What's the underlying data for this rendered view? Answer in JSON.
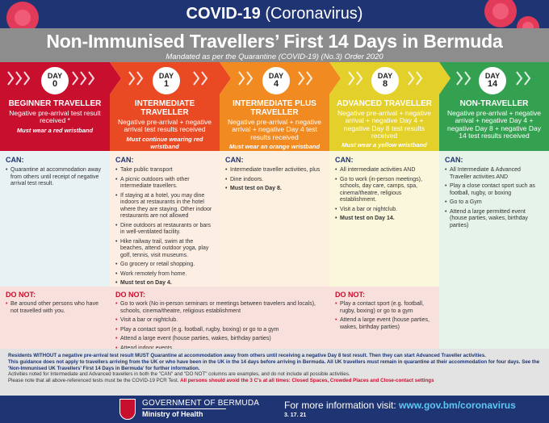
{
  "header": {
    "title_bold": "COVID-19",
    "title_light": "(Coronavirus)",
    "main_title": "Non-Immunised Travellers’ First 14 Days in Bermuda",
    "mandate": "Mandated as per the Quarantine (COVID-19) (No.3) Order 2020"
  },
  "colors": {
    "navy": "#1e3473",
    "red": "#c8102e",
    "orange_red": "#ea4a23",
    "orange": "#f18a21",
    "yellow": "#e4d02a",
    "green": "#33a150",
    "url_blue": "#5ec8f2"
  },
  "days": [
    {
      "label": "DAY",
      "num": "0"
    },
    {
      "label": "DAY",
      "num": "1"
    },
    {
      "label": "DAY",
      "num": "4"
    },
    {
      "label": "DAY",
      "num": "8"
    },
    {
      "label": "DAY",
      "num": "14"
    }
  ],
  "stages": [
    {
      "title": "BEGINNER TRAVELLER",
      "desc": "Negative pre-arrival test result received *",
      "note": "Must wear a red wristband"
    },
    {
      "title": "INTERMEDIATE TRAVELLER",
      "desc": "Negative pre-arrival + negative arrival test results received",
      "note": "Must continue wearing red wristband"
    },
    {
      "title": "INTERMEDIATE PLUS TRAVELLER",
      "desc": "Negative pre-arrival + negative arrival + negative Day 4 test results received",
      "note": "Must wear an orange wristband"
    },
    {
      "title": "ADVANCED TRAVELLER",
      "desc": "Negative pre-arrival + negative arrival + negative Day 4 + negative Day 8 test results received",
      "note": "Must wear a yellow wristband"
    },
    {
      "title": "NON-TRAVELLER",
      "desc": "Negative pre-arrival + negative arrival + negative Day 4 + negative Day 8 + negative Day 14 test results received",
      "note": ""
    }
  ],
  "can_label": "CAN:",
  "donot_label": "DO NOT:",
  "can": [
    [
      "Quarantine at accommodation away from others until receipt of negative arrival test result."
    ],
    [
      "Take public transport",
      "A picnic outdoors with other intermediate travellers.",
      "If staying at a hotel, you may dine indoors at restaurants in the hotel where they are staying. Other indoor restaurants are not allowed",
      "Dine outdoors at restaurants or bars in well-ventilated facility.",
      "Hike railway trail, swim at the beaches, attend outdoor yoga, play golf, tennis, visit museums.",
      "Go grocery or retail shopping.",
      "Work remotely from home.",
      "Must test on Day 4."
    ],
    [
      "Intermediate traveller activities, plus",
      "Dine indoors.",
      "Must test on Day 8."
    ],
    [
      "All intermediate activities AND",
      "Go to work (in-person meetings), schools, day care, camps, spa, cinema/theatre, religious establishment.",
      "Visit a bar or nightclub.",
      "Must test on Day 14."
    ],
    [
      "All Intermediate & Advanced Traveller activities AND",
      "Play a close contact sport such as football, rugby, or boxing",
      "Go to a Gym",
      "Attend a large permitted event (house parties, wakes, birthday parties)"
    ]
  ],
  "donot": [
    [
      "Be around other persons who have not travelled with you."
    ],
    [
      "Go to work (No in-person seminars or meetings between travelers and locals), schools, cinema/theatre, religious establishment",
      "Visit a bar or nightclub.",
      "Play a contact sport (e.g. football, rugby, boxing) or go to a gym",
      "Attend a large event (house parties, wakes, birthday parties)",
      "Attend indoor events."
    ],
    [
      "Play a contact sport (e.g. football, rugby, boxing) or go to a gym",
      "Attend a large event (house parties, wakes, birthday parties)"
    ]
  ],
  "footnote": {
    "line1": "Residents WITHOUT a negative pre-arrival test result MUST Quarantine at accommodation away from others until receiving a negative Day 8 test result. Then they can start Advanced Traveller activities.",
    "line2": "This guidance does not apply to travellers arriving from the UK or who have been in the UK in the 14 days before arriving in Bermuda. All UK travellers must remain in quarantine at their accommodation for four days. See the 'Non-Immunised UK Travellers' First 14 Days in Bermuda' for further information.",
    "line3": "Activities noted for Intermediate and Advanced travellers in both the \"CAN\" and \"DO NOT\" columns are examples, and do not include all possible activities.",
    "line4a": "Please note that all above-referenced tests must be the COVID-19 PCR Test.",
    "line4b": "All persons should avoid the 3 C's at all times: Closed Spaces, Crowded Places and Close-contact settings"
  },
  "footer": {
    "gov": "GOVERNMENT OF BERMUDA",
    "ministry": "Ministry of Health",
    "info_prefix": "For more information visit:",
    "url": "www.gov.bm/coronavirus",
    "date": "3. 17. 21"
  }
}
